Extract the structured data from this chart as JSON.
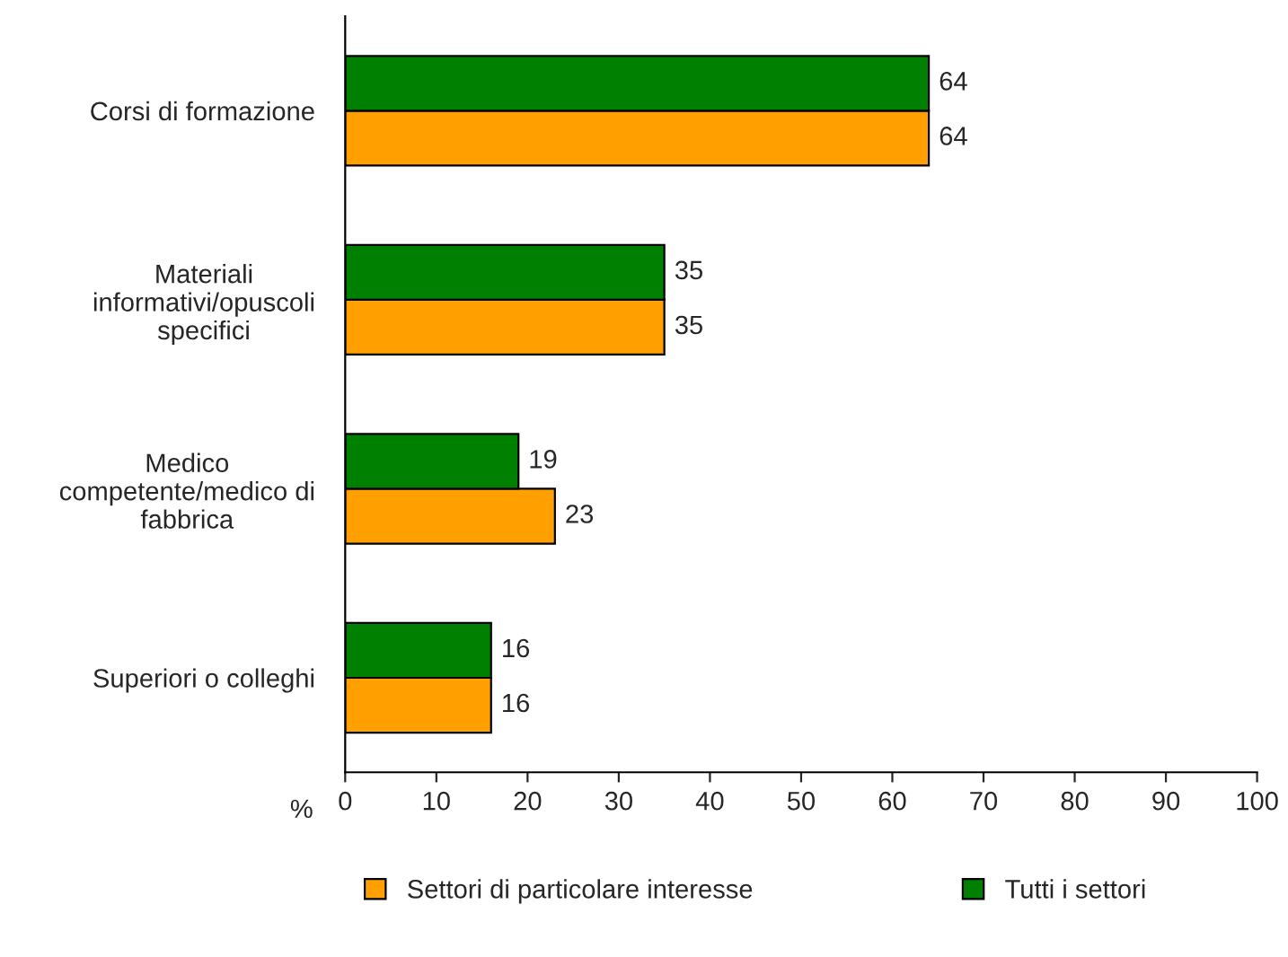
{
  "chart_data": {
    "type": "bar",
    "orientation": "horizontal",
    "categories": [
      "Corsi di formazione",
      "Materiali\ninformativi/opuscoli\nspecifici",
      "Medico\ncompetente/medico di\nfabbrica",
      "Superiori o colleghi"
    ],
    "series": [
      {
        "name": "Settori di particolare interesse",
        "color": "#ffa000",
        "values": [
          64,
          35,
          23,
          16
        ]
      },
      {
        "name": "Tutti i settori",
        "color": "#008000",
        "values": [
          64,
          35,
          19,
          16
        ]
      }
    ],
    "xlabel": "%",
    "xlim": [
      0,
      100
    ],
    "xticks": [
      0,
      10,
      20,
      30,
      40,
      50,
      60,
      70,
      80,
      90,
      100
    ],
    "data_labels": true,
    "grid": false,
    "legend": "bottom"
  }
}
